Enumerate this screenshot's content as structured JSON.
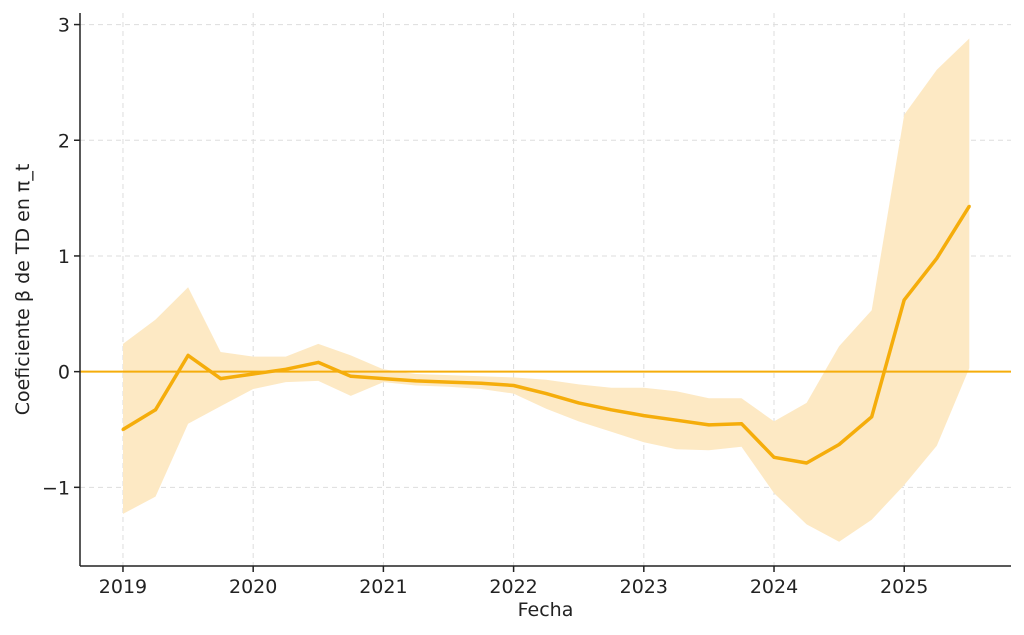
{
  "chart_data": {
    "type": "line",
    "title": "",
    "xlabel": "Fecha",
    "ylabel": "Coeficiente β de TD en π_t",
    "x_ticks": [
      "2019",
      "2020",
      "2021",
      "2022",
      "2023",
      "2024",
      "2025"
    ],
    "y_ticks": [
      "3",
      "2",
      "1",
      "0",
      "−1"
    ],
    "xlim": [
      2018.67,
      2025.82
    ],
    "ylim": [
      -1.68,
      3.1
    ],
    "grid": true,
    "legend": "none",
    "reference_line": {
      "y": 0
    },
    "x": [
      2019.0,
      2019.25,
      2019.5,
      2019.75,
      2020.0,
      2020.25,
      2020.5,
      2020.75,
      2021.0,
      2021.25,
      2021.5,
      2021.75,
      2022.0,
      2022.25,
      2022.5,
      2022.75,
      2023.0,
      2023.25,
      2023.5,
      2023.75,
      2024.0,
      2024.25,
      2024.5,
      2024.75,
      2025.0,
      2025.25,
      2025.5
    ],
    "series": [
      {
        "values": [
          -0.5,
          -0.33,
          0.14,
          -0.06,
          -0.02,
          0.02,
          0.08,
          -0.04,
          -0.06,
          -0.08,
          -0.09,
          -0.1,
          -0.12,
          -0.19,
          -0.27,
          -0.33,
          -0.38,
          -0.42,
          -0.46,
          -0.45,
          -0.74,
          -0.79,
          -0.63,
          -0.39,
          0.62,
          0.98,
          1.43
        ],
        "lower": [
          -1.23,
          -1.08,
          -0.45,
          -0.3,
          -0.15,
          -0.09,
          -0.08,
          -0.21,
          -0.09,
          -0.12,
          -0.13,
          -0.15,
          -0.19,
          -0.32,
          -0.43,
          -0.52,
          -0.61,
          -0.67,
          -0.68,
          -0.65,
          -1.05,
          -1.32,
          -1.47,
          -1.28,
          -0.98,
          -0.64,
          0.03
        ],
        "upper": [
          0.24,
          0.45,
          0.73,
          0.17,
          0.13,
          0.13,
          0.24,
          0.14,
          0.02,
          -0.02,
          -0.03,
          -0.04,
          -0.05,
          -0.07,
          -0.11,
          -0.14,
          -0.14,
          -0.17,
          -0.23,
          -0.23,
          -0.43,
          -0.27,
          0.22,
          0.53,
          2.22,
          2.61,
          2.88
        ]
      }
    ]
  },
  "colors": {
    "line": "#f5ad0b",
    "band": "#fde9c4",
    "zero_line": "#f5ad0b",
    "grid": "#dddddd",
    "axis": "#222222"
  }
}
